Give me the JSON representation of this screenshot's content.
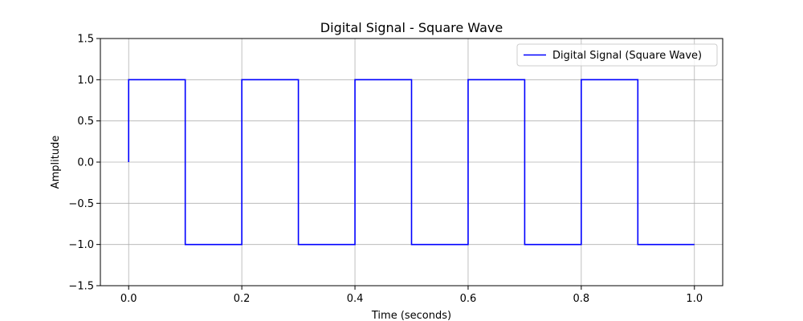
{
  "chart_data": {
    "type": "line",
    "title": "Digital Signal - Square Wave",
    "xlabel": "Time (seconds)",
    "ylabel": "Amplitude",
    "xlim": [
      -0.05,
      1.05
    ],
    "ylim": [
      -1.5,
      1.5
    ],
    "xticks": [
      0.0,
      0.2,
      0.4,
      0.6,
      0.8,
      1.0
    ],
    "xtick_labels": [
      "0.0",
      "0.2",
      "0.4",
      "0.6",
      "0.8",
      "1.0"
    ],
    "yticks": [
      -1.5,
      -1.0,
      -0.5,
      0.0,
      0.5,
      1.0,
      1.5
    ],
    "ytick_labels": [
      "−1.5",
      "−1.0",
      "−0.5",
      "0.0",
      "0.5",
      "1.0",
      "1.5"
    ],
    "grid": true,
    "legend_position": "top-right",
    "series": [
      {
        "name": "Digital Signal (Square Wave)",
        "color": "#0000ff",
        "x": [
          0.0,
          0.0,
          0.1,
          0.1,
          0.2,
          0.2,
          0.3,
          0.3,
          0.4,
          0.4,
          0.5,
          0.5,
          0.6,
          0.6,
          0.7,
          0.7,
          0.8,
          0.8,
          0.9,
          0.9,
          1.0
        ],
        "y": [
          0.0,
          1.0,
          1.0,
          -1.0,
          -1.0,
          1.0,
          1.0,
          -1.0,
          -1.0,
          1.0,
          1.0,
          -1.0,
          -1.0,
          1.0,
          1.0,
          -1.0,
          -1.0,
          1.0,
          1.0,
          -1.0,
          -1.0
        ]
      }
    ]
  }
}
